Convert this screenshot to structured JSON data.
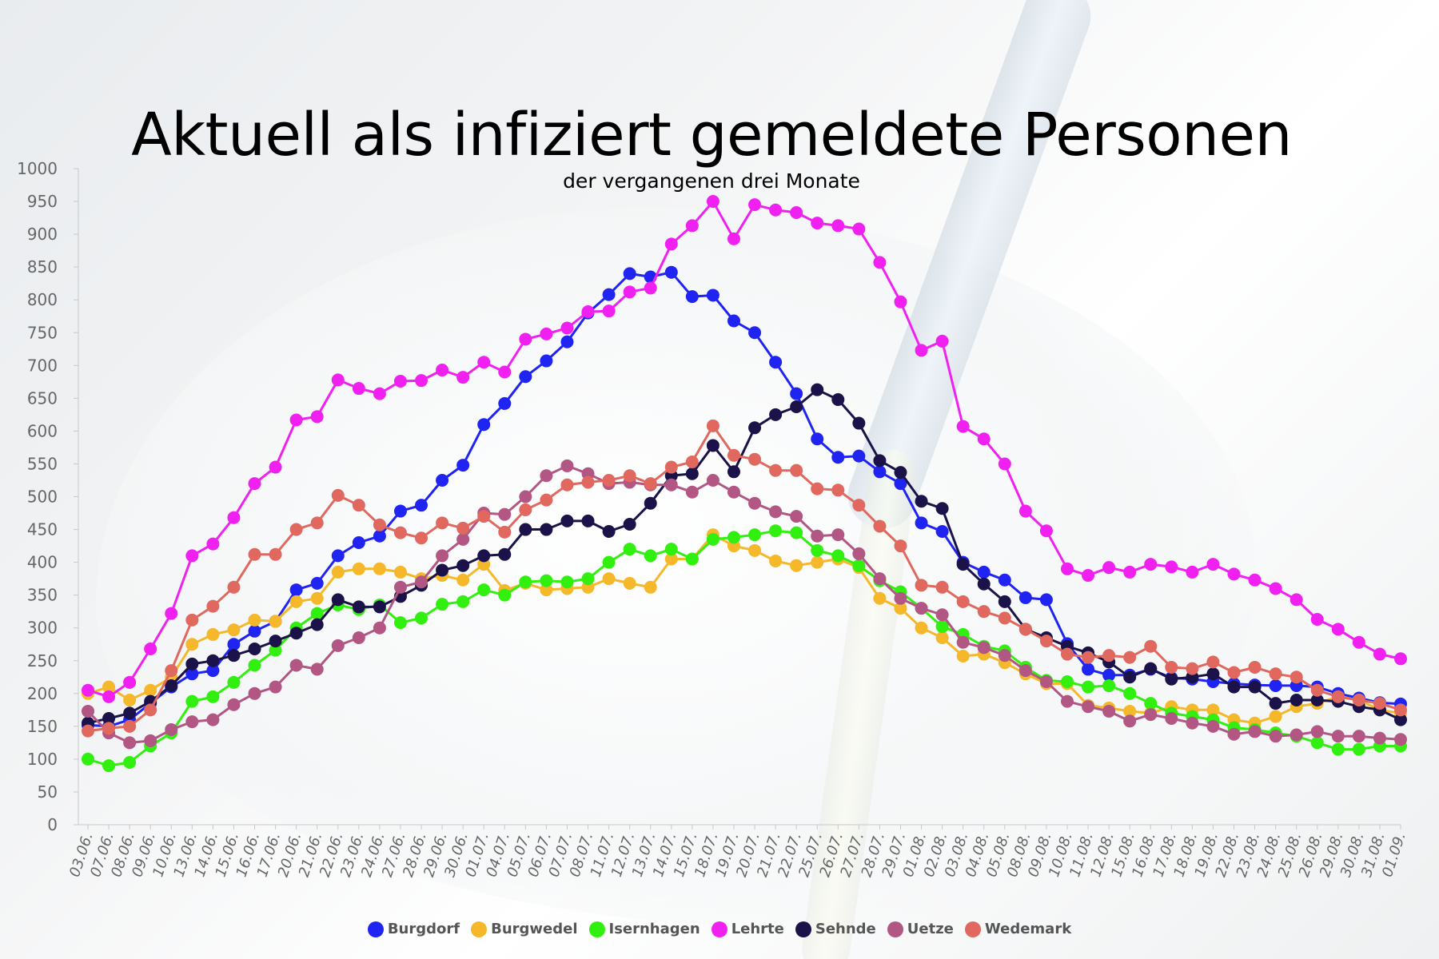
{
  "chart_data": {
    "type": "line",
    "title": "Aktuell als infiziert gemeldete Personen",
    "subtitle": "der vergangenen drei Monate",
    "xlabel": "",
    "ylabel": "",
    "ylim": [
      0,
      1000
    ],
    "y_ticks": [
      "0",
      "50",
      "100",
      "150",
      "200",
      "250",
      "300",
      "350",
      "400",
      "450",
      "500",
      "550",
      "600",
      "650",
      "700",
      "750",
      "800",
      "850",
      "900",
      "950",
      "1000"
    ],
    "grid": false,
    "legend_position": "bottom",
    "categories": [
      "03.06.",
      "07.06.",
      "08.06.",
      "09.06.",
      "10.06.",
      "13.06.",
      "14.06.",
      "15.06.",
      "16.06.",
      "17.06.",
      "20.06.",
      "21.06.",
      "22.06.",
      "23.06.",
      "24.06.",
      "27.06.",
      "28.06.",
      "29.06.",
      "30.06.",
      "01.07.",
      "04.07.",
      "05.07.",
      "06.07.",
      "07.07.",
      "08.07.",
      "11.07.",
      "12.07.",
      "13.07.",
      "14.07.",
      "15.07.",
      "18.07.",
      "19.07.",
      "20.07.",
      "21.07.",
      "22.07.",
      "25.07.",
      "26.07.",
      "27.07.",
      "28.07.",
      "29.07.",
      "01.08.",
      "02.08.",
      "03.08.",
      "04.08.",
      "05.08.",
      "08.08.",
      "09.08.",
      "10.08.",
      "11.08.",
      "12.08.",
      "15.08.",
      "16.08.",
      "17.08.",
      "18.08.",
      "19.08.",
      "22.08.",
      "23.08.",
      "24.08.",
      "25.08.",
      "26.08.",
      "29.08.",
      "30.08.",
      "31.08.",
      "01.09."
    ],
    "series": [
      {
        "name": "Burgdorf",
        "color": "#1f24f2",
        "values": [
          152,
          150,
          160,
          185,
          210,
          230,
          235,
          275,
          295,
          310,
          358,
          368,
          410,
          430,
          440,
          478,
          487,
          525,
          548,
          610,
          642,
          683,
          707,
          736,
          780,
          808,
          840,
          835,
          842,
          805,
          807,
          768,
          750,
          705,
          657,
          588,
          560,
          562,
          538,
          520,
          460,
          447,
          400,
          385,
          373,
          346,
          343,
          276,
          237,
          228,
          228,
          237,
          224,
          222,
          218,
          215,
          213,
          212,
          212,
          210,
          200,
          193,
          186,
          184
        ]
      },
      {
        "name": "Burgwedel",
        "color": "#f5b82a",
        "values": [
          200,
          210,
          190,
          205,
          225,
          275,
          290,
          297,
          312,
          310,
          340,
          345,
          385,
          390,
          390,
          385,
          375,
          380,
          373,
          397,
          357,
          368,
          358,
          360,
          362,
          375,
          368,
          362,
          405,
          405,
          442,
          425,
          418,
          402,
          395,
          400,
          405,
          392,
          345,
          330,
          300,
          285,
          257,
          260,
          247,
          230,
          215,
          215,
          182,
          178,
          173,
          170,
          180,
          175,
          175,
          160,
          155,
          165,
          180,
          185,
          195,
          190,
          175,
          170
        ]
      },
      {
        "name": "Isernhagen",
        "color": "#31f00f",
        "values": [
          100,
          90,
          95,
          120,
          140,
          188,
          195,
          217,
          243,
          266,
          300,
          322,
          335,
          328,
          335,
          308,
          315,
          336,
          340,
          358,
          350,
          370,
          372,
          370,
          375,
          400,
          420,
          410,
          420,
          405,
          435,
          438,
          442,
          448,
          445,
          418,
          410,
          395,
          372,
          355,
          330,
          302,
          290,
          272,
          265,
          240,
          220,
          218,
          210,
          212,
          200,
          185,
          170,
          165,
          160,
          148,
          145,
          140,
          135,
          125,
          115,
          115,
          120,
          120
        ]
      },
      {
        "name": "Lehrte",
        "color": "#f021f0",
        "values": [
          205,
          195,
          217,
          268,
          322,
          410,
          428,
          468,
          520,
          545,
          617,
          622,
          678,
          665,
          657,
          676,
          677,
          693,
          682,
          705,
          690,
          740,
          748,
          757,
          782,
          783,
          812,
          818,
          885,
          913,
          950,
          893,
          945,
          937,
          933,
          917,
          913,
          908,
          857,
          797,
          723,
          737,
          607,
          588,
          550,
          478,
          448,
          390,
          380,
          392,
          385,
          397,
          393,
          385,
          397,
          382,
          373,
          360,
          343,
          313,
          298,
          278,
          260,
          253
        ]
      },
      {
        "name": "Sehnde",
        "color": "#1a1248",
        "values": [
          155,
          162,
          170,
          188,
          212,
          245,
          250,
          258,
          268,
          280,
          292,
          305,
          343,
          332,
          332,
          348,
          365,
          388,
          395,
          410,
          412,
          450,
          450,
          463,
          463,
          447,
          458,
          490,
          532,
          535,
          578,
          538,
          605,
          625,
          637,
          663,
          648,
          612,
          555,
          537,
          493,
          482,
          397,
          367,
          340,
          298,
          285,
          272,
          262,
          248,
          225,
          238,
          222,
          225,
          230,
          210,
          210,
          185,
          190,
          190,
          188,
          180,
          175,
          160
        ]
      },
      {
        "name": "Uetze",
        "color": "#b25684",
        "values": [
          173,
          140,
          125,
          128,
          145,
          157,
          160,
          183,
          200,
          210,
          243,
          237,
          273,
          285,
          300,
          362,
          370,
          410,
          435,
          475,
          473,
          500,
          532,
          547,
          535,
          520,
          522,
          518,
          518,
          507,
          525,
          507,
          490,
          477,
          470,
          440,
          442,
          413,
          375,
          345,
          330,
          320,
          278,
          270,
          258,
          235,
          218,
          188,
          180,
          173,
          158,
          168,
          162,
          155,
          150,
          138,
          142,
          135,
          137,
          142,
          135,
          135,
          132,
          130
        ]
      },
      {
        "name": "Wedemark",
        "color": "#e0685f",
        "values": [
          143,
          147,
          150,
          175,
          235,
          312,
          333,
          362,
          412,
          412,
          450,
          460,
          502,
          487,
          457,
          445,
          437,
          460,
          452,
          470,
          446,
          480,
          495,
          518,
          522,
          525,
          532,
          520,
          545,
          553,
          608,
          563,
          557,
          540,
          540,
          512,
          510,
          487,
          455,
          425,
          365,
          362,
          340,
          325,
          315,
          298,
          280,
          260,
          255,
          258,
          255,
          272,
          240,
          238,
          248,
          232,
          240,
          230,
          225,
          205,
          195,
          190,
          185,
          175
        ]
      }
    ]
  }
}
